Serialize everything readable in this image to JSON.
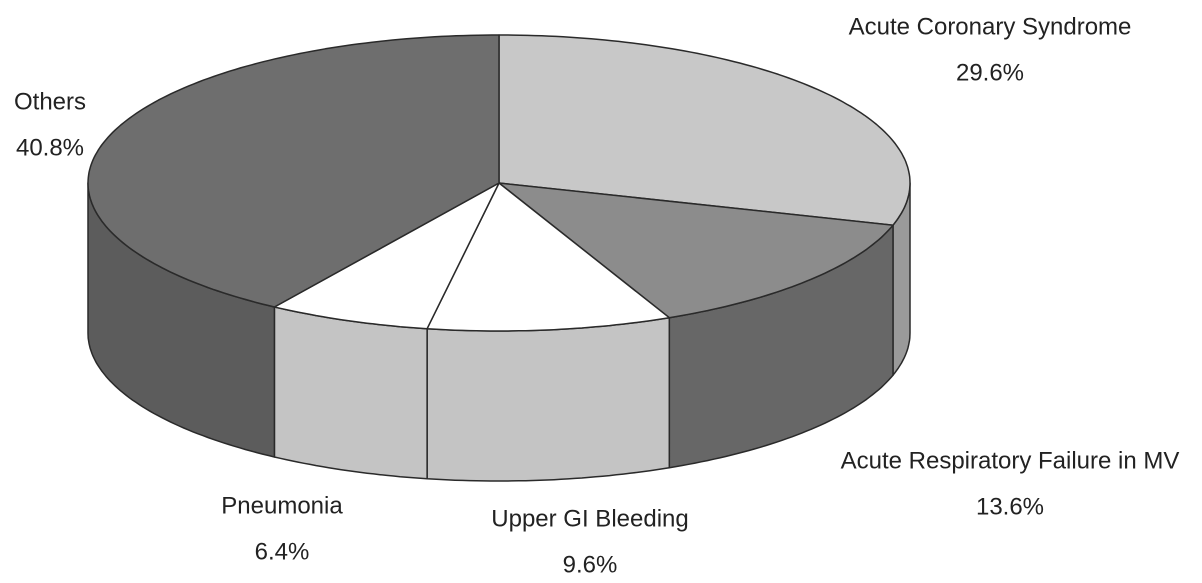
{
  "chart_data": {
    "type": "pie3d",
    "categories": [
      "Acute Coronary Syndrome",
      "Acute Respiratory Failure in MV",
      "Upper GI Bleeding",
      "Pneumonia",
      "Others"
    ],
    "values": [
      29.6,
      13.6,
      9.6,
      6.4,
      40.8
    ],
    "value_labels": [
      "29.6%",
      "13.6%",
      "9.6%",
      "6.4%",
      "40.8%"
    ],
    "colors": [
      "#c8c8c8",
      "#8c8c8c",
      "#ffffff",
      "#ffffff",
      "#6e6e6e"
    ],
    "side_colors": [
      "#9a9a9a",
      "#676767",
      "#c4c4c4",
      "#c4c4c4",
      "#5c5c5c"
    ]
  }
}
